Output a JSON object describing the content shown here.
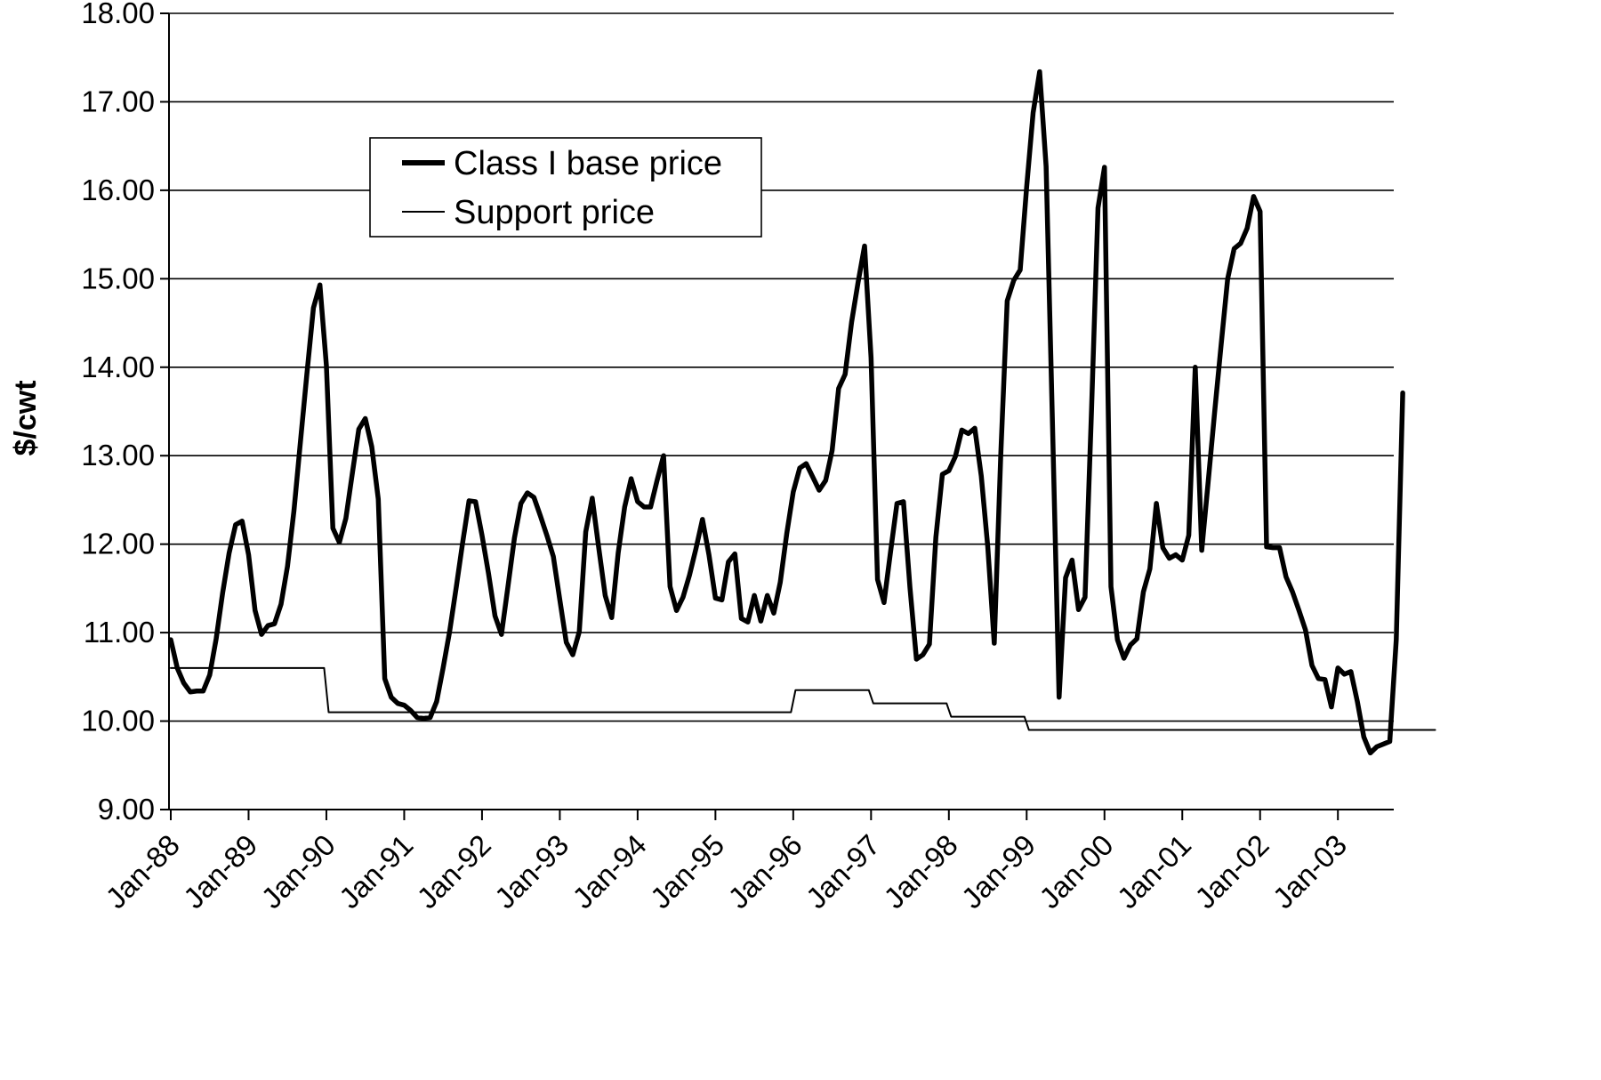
{
  "chart_data": {
    "type": "line",
    "title": "",
    "xlabel": "",
    "ylabel": "$/cwt",
    "ylim": [
      9,
      18
    ],
    "yticks": [
      "9.00",
      "10.00",
      "11.00",
      "12.00",
      "13.00",
      "14.00",
      "15.00",
      "16.00",
      "17.00",
      "18.00"
    ],
    "xticks": [
      "Jan-88",
      "Jan-89",
      "Jan-90",
      "Jan-91",
      "Jan-92",
      "Jan-93",
      "Jan-94",
      "Jan-95",
      "Jan-96",
      "Jan-97",
      "Jan-98",
      "Jan-99",
      "Jan-00",
      "Jan-01",
      "Jan-02",
      "Jan-03"
    ],
    "x_start": "Jan-88",
    "x_interval": "month",
    "grid": "horizontal",
    "legend_position": "top-left",
    "series": [
      {
        "name": "Class I base price",
        "style": "thick",
        "values": [
          10.92,
          10.6,
          10.43,
          10.33,
          10.34,
          10.34,
          10.52,
          10.93,
          11.45,
          11.9,
          12.22,
          12.26,
          11.88,
          11.25,
          10.98,
          11.08,
          11.1,
          11.32,
          11.75,
          12.38,
          13.16,
          13.93,
          14.67,
          14.93,
          14.02,
          12.18,
          12.02,
          12.29,
          12.8,
          13.3,
          13.42,
          13.1,
          12.51,
          10.48,
          10.27,
          10.2,
          10.18,
          10.12,
          10.04,
          10.03,
          10.04,
          10.22,
          10.6,
          11.01,
          11.5,
          12.01,
          12.49,
          12.48,
          12.1,
          11.67,
          11.19,
          10.98,
          11.52,
          12.07,
          12.46,
          12.58,
          12.53,
          12.32,
          12.1,
          11.86,
          11.37,
          10.89,
          10.75,
          11.01,
          12.14,
          12.52,
          11.96,
          11.42,
          11.17,
          11.9,
          12.42,
          12.74,
          12.48,
          12.42,
          12.42,
          12.72,
          13.0,
          11.52,
          11.25,
          11.4,
          11.65,
          11.95,
          12.28,
          11.88,
          11.39,
          11.37,
          11.8,
          11.89,
          11.16,
          11.12,
          11.42,
          11.13,
          11.42,
          11.22,
          11.57,
          12.12,
          12.59,
          12.86,
          12.91,
          12.76,
          12.61,
          12.72,
          13.06,
          13.76,
          13.92,
          14.51,
          14.96,
          15.37,
          14.11,
          11.6,
          11.34,
          11.91,
          12.46,
          12.48,
          11.51,
          10.7,
          10.75,
          10.87,
          12.08,
          12.79,
          12.83,
          12.99,
          13.29,
          13.25,
          13.31,
          12.77,
          11.97,
          10.88,
          13.0,
          14.75,
          14.98,
          15.1,
          16.04,
          16.88,
          17.34,
          16.27,
          13.3,
          10.27,
          11.62,
          11.82,
          11.26,
          11.4,
          13.51,
          15.8,
          16.26,
          11.52,
          10.92,
          10.71,
          10.86,
          10.93,
          11.46,
          11.72,
          12.46,
          11.96,
          11.84,
          11.88,
          11.82,
          12.1,
          14.0,
          11.93,
          12.71,
          13.5,
          14.26,
          15.0,
          15.34,
          15.4,
          15.57,
          15.93,
          15.76,
          11.97,
          11.96,
          11.96,
          11.63,
          11.46,
          11.25,
          11.03,
          10.63,
          10.48,
          10.47,
          10.16,
          10.6,
          10.53,
          10.56,
          10.22,
          9.82,
          9.64,
          9.71,
          9.74,
          9.77,
          10.92,
          13.71
        ]
      },
      {
        "name": "Support price",
        "style": "thin",
        "values": [
          10.6,
          10.6,
          10.6,
          10.6,
          10.6,
          10.6,
          10.6,
          10.6,
          10.6,
          10.6,
          10.6,
          10.6,
          10.6,
          10.6,
          10.6,
          10.6,
          10.6,
          10.6,
          10.6,
          10.6,
          10.6,
          10.6,
          10.6,
          10.6,
          10.1,
          10.1,
          10.1,
          10.1,
          10.1,
          10.1,
          10.1,
          10.1,
          10.1,
          10.1,
          10.1,
          10.1,
          10.1,
          10.1,
          10.1,
          10.1,
          10.1,
          10.1,
          10.1,
          10.1,
          10.1,
          10.1,
          10.1,
          10.1,
          10.1,
          10.1,
          10.1,
          10.1,
          10.1,
          10.1,
          10.1,
          10.1,
          10.1,
          10.1,
          10.1,
          10.1,
          10.1,
          10.1,
          10.1,
          10.1,
          10.1,
          10.1,
          10.1,
          10.1,
          10.1,
          10.1,
          10.1,
          10.1,
          10.1,
          10.1,
          10.1,
          10.1,
          10.1,
          10.1,
          10.1,
          10.1,
          10.1,
          10.1,
          10.1,
          10.1,
          10.1,
          10.1,
          10.1,
          10.1,
          10.1,
          10.1,
          10.1,
          10.1,
          10.1,
          10.1,
          10.1,
          10.1,
          10.35,
          10.35,
          10.35,
          10.35,
          10.35,
          10.35,
          10.35,
          10.35,
          10.35,
          10.35,
          10.35,
          10.35,
          10.2,
          10.2,
          10.2,
          10.2,
          10.2,
          10.2,
          10.2,
          10.2,
          10.2,
          10.2,
          10.2,
          10.2,
          10.05,
          10.05,
          10.05,
          10.05,
          10.05,
          10.05,
          10.05,
          10.05,
          10.05,
          10.05,
          10.05,
          10.05,
          9.9,
          9.9,
          9.9,
          9.9,
          9.9,
          9.9,
          9.9,
          9.9,
          9.9,
          9.9,
          9.9,
          9.9,
          9.9,
          9.9,
          9.9,
          9.9,
          9.9,
          9.9,
          9.9,
          9.9,
          9.9,
          9.9,
          9.9,
          9.9,
          9.9,
          9.9,
          9.9,
          9.9,
          9.9,
          9.9,
          9.9,
          9.9,
          9.9,
          9.9,
          9.9,
          9.9,
          9.9,
          9.9,
          9.9,
          9.9,
          9.9,
          9.9,
          9.9,
          9.9,
          9.9,
          9.9,
          9.9,
          9.9,
          9.9,
          9.9,
          9.9,
          9.9,
          9.9,
          9.9,
          9.9,
          9.9,
          9.9,
          9.9,
          9.9,
          9.9,
          9.9,
          9.9,
          9.9,
          9.9
        ]
      }
    ]
  }
}
